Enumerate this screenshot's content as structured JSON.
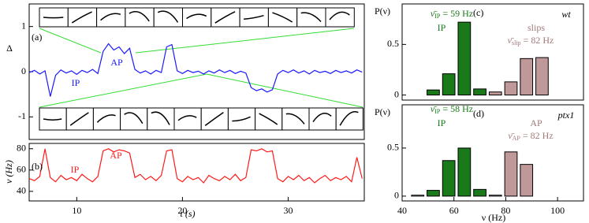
{
  "chart_data": [
    {
      "type": "line",
      "panel": "(a)",
      "ylabel": "Δ",
      "xlim": [
        5.5,
        37.2
      ],
      "ylim": [
        -1.5,
        1.5
      ],
      "yticks": [
        1,
        0,
        -1
      ],
      "x": [
        5.5,
        6,
        6.5,
        7,
        7.5,
        8,
        8.5,
        9,
        9.5,
        10,
        10.5,
        11,
        11.5,
        12,
        12.5,
        13,
        13.5,
        14,
        14.5,
        15,
        15.5,
        16,
        16.5,
        17,
        17.5,
        18,
        18.5,
        19,
        19.5,
        20,
        20.5,
        21,
        21.5,
        22,
        22.5,
        23,
        23.5,
        24,
        24.5,
        25,
        25.5,
        26,
        26.5,
        27,
        27.5,
        28,
        28.5,
        29,
        29.5,
        30,
        30.5,
        31,
        31.5,
        32,
        32.5,
        33,
        33.5,
        34,
        34.5,
        35,
        35.5,
        36,
        36.5,
        37
      ],
      "series": [
        {
          "color": "#1a1aff",
          "values": [
            -0.02,
            0.03,
            -0.05,
            0.02,
            -0.55,
            -0.08,
            0.04,
            -0.03,
            0.02,
            -0.06,
            0.03,
            -0.02,
            0.05,
            -0.04,
            0.45,
            0.62,
            0.48,
            0.55,
            0.4,
            0.52,
            0.05,
            -0.03,
            0.02,
            -0.05,
            0.03,
            -0.02,
            0.55,
            0.6,
            0.02,
            -0.04,
            0.03,
            -0.02,
            0.01,
            -0.05,
            0.02,
            -0.03,
            0.04,
            -0.02,
            0.03,
            -0.04,
            0.01,
            -0.03,
            -0.35,
            -0.42,
            -0.38,
            -0.45,
            -0.4,
            -0.05,
            0.03,
            -0.02,
            0.04,
            -0.03,
            0.02,
            -0.05,
            0.03,
            -0.02,
            0.01,
            -0.04,
            0.03,
            -0.02,
            0.02,
            -0.03,
            0.04,
            -0.01
          ]
        }
      ],
      "annotations": [
        {
          "text": "AP",
          "color": "#1a1aff"
        },
        {
          "text": "IP",
          "color": "#1a1aff"
        }
      ]
    },
    {
      "type": "line",
      "panel": "(b)",
      "ylabel": "ν (Hz)",
      "xlabel": "t (s)",
      "xlim": [
        5.5,
        37.2
      ],
      "ylim": [
        31,
        85
      ],
      "xticks": [
        10,
        20,
        30
      ],
      "yticks": [
        80,
        60,
        40
      ],
      "x": [
        5.5,
        6,
        6.5,
        7,
        7.5,
        8,
        8.5,
        9,
        9.5,
        10,
        10.5,
        11,
        11.5,
        12,
        12.5,
        13,
        13.5,
        14,
        14.5,
        15,
        15.5,
        16,
        16.5,
        17,
        17.5,
        18,
        18.5,
        19,
        19.5,
        20,
        20.5,
        21,
        21.5,
        22,
        22.5,
        23,
        23.5,
        24,
        24.5,
        25,
        25.5,
        26,
        26.5,
        27,
        27.5,
        28,
        28.5,
        29,
        29.5,
        30,
        30.5,
        31,
        31.5,
        32,
        32.5,
        33,
        33.5,
        34,
        34.5,
        35,
        35.5,
        36,
        36.5,
        37
      ],
      "series": [
        {
          "color": "#ff1a1a",
          "values": [
            52,
            50,
            54,
            80,
            53,
            49,
            55,
            51,
            53,
            50,
            56,
            52,
            49,
            54,
            78,
            80,
            77,
            79,
            78,
            76,
            53,
            56,
            51,
            54,
            50,
            55,
            78,
            79,
            52,
            49,
            54,
            51,
            53,
            48,
            55,
            52,
            50,
            54,
            51,
            56,
            50,
            53,
            79,
            78,
            80,
            77,
            78,
            52,
            49,
            54,
            51,
            55,
            50,
            53,
            48,
            52,
            55,
            50,
            53,
            51,
            54,
            49,
            72,
            52
          ]
        }
      ],
      "annotations": [
        {
          "text": "IP",
          "color": "#ff1a1a"
        },
        {
          "text": "AP",
          "color": "#ff1a1a"
        }
      ]
    },
    {
      "type": "histogram",
      "panel": "(c)",
      "ylabel": "P(ν)",
      "strain": "wt",
      "xlim": [
        40,
        110
      ],
      "ylim": [
        -0.05,
        0.9
      ],
      "yticks": [
        0.5,
        0
      ],
      "bins": [
        43,
        49,
        55,
        61,
        67,
        73,
        79,
        85,
        91,
        97
      ],
      "series": [
        {
          "name": "IP",
          "color": "#1a7a1a",
          "values": [
            null,
            0.05,
            0.21,
            0.72,
            0.06,
            null,
            null,
            null,
            null
          ]
        },
        {
          "name": "slips",
          "color": "#bf9999",
          "values": [
            null,
            null,
            null,
            null,
            null,
            0.03,
            0.13,
            0.36,
            0.37
          ]
        }
      ],
      "means": [
        {
          "symbol": "ν̄",
          "sub": "IP",
          "rest": " = 59 Hz",
          "color": "#1a7a1a"
        },
        {
          "symbol": "ν̄",
          "sub": "slip",
          "rest": " = 82 Hz",
          "color": "#a07878"
        }
      ]
    },
    {
      "type": "histogram",
      "panel": "(d)",
      "ylabel": "P(ν)",
      "strain": "ptx1",
      "xlabel": "ν (Hz)",
      "xlim": [
        40,
        110
      ],
      "ylim": [
        -0.05,
        0.95
      ],
      "xticks": [
        40,
        60,
        80,
        100
      ],
      "yticks": [
        0.5,
        0
      ],
      "bins": [
        37,
        43,
        49,
        55,
        61,
        67,
        73,
        79,
        85,
        91
      ],
      "series": [
        {
          "name": "IP",
          "color": "#1a7a1a",
          "values": [
            null,
            0.01,
            0.06,
            0.37,
            0.5,
            0.07,
            null,
            null,
            null
          ]
        },
        {
          "name": "AP",
          "color": "#bf9999",
          "values": [
            null,
            null,
            null,
            null,
            null,
            null,
            0.01,
            0.46,
            0.33
          ]
        }
      ],
      "means": [
        {
          "symbol": "ν̄",
          "sub": "IP",
          "rest": " = 58 Hz",
          "color": "#1a7a1a"
        },
        {
          "symbol": "ν̄",
          "sub": "AP",
          "rest": " = 82 Hz",
          "color": "#a07878"
        }
      ]
    }
  ]
}
